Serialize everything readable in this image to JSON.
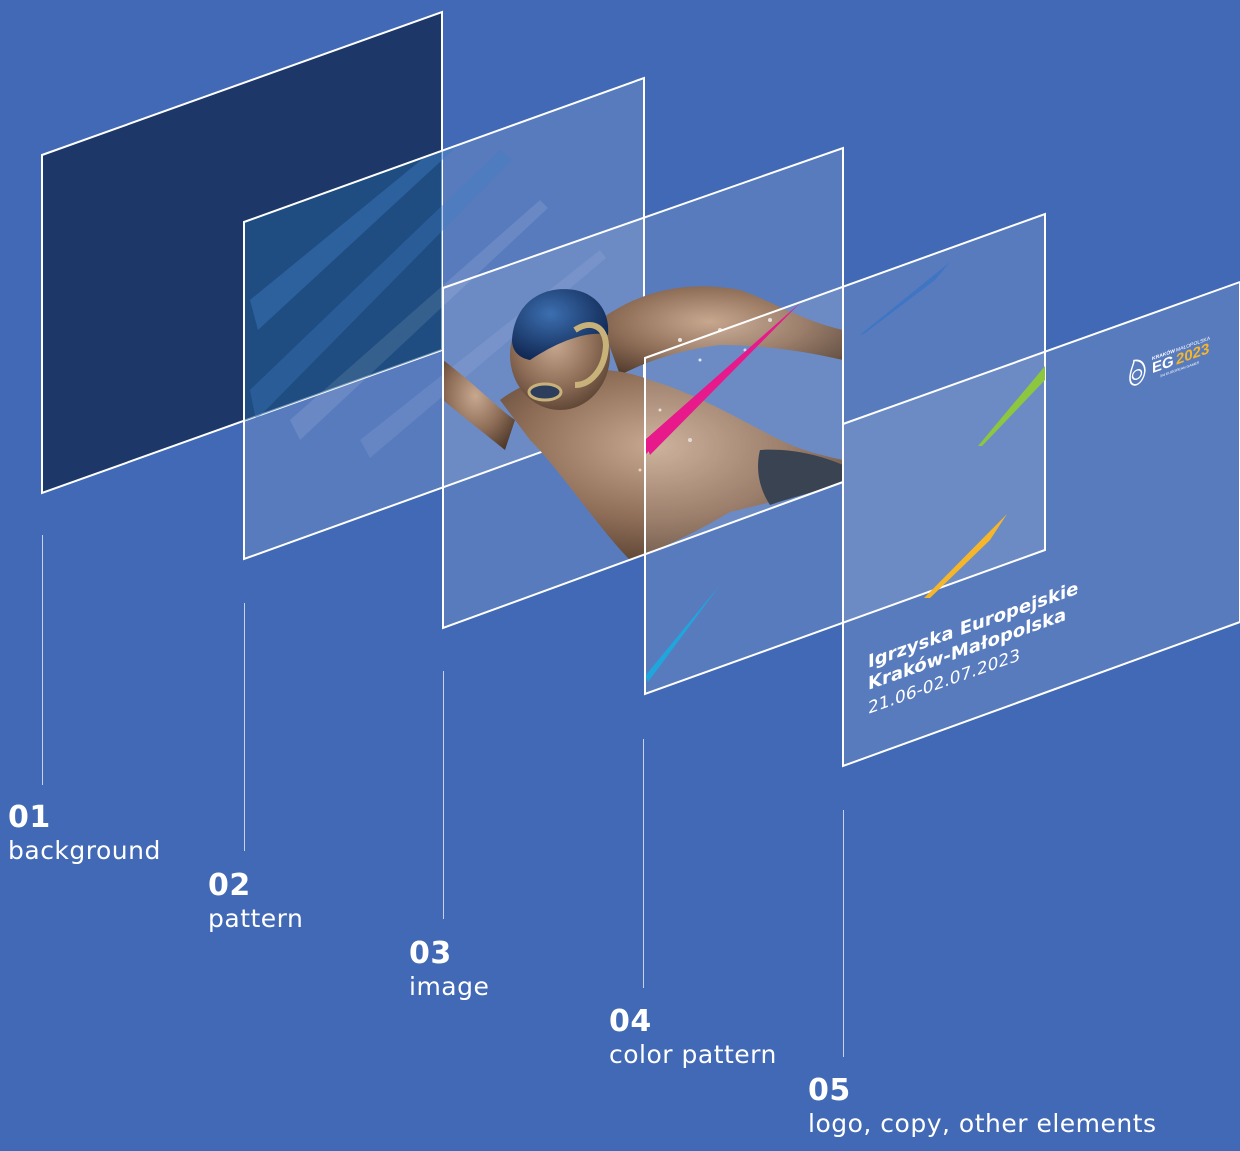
{
  "colors": {
    "background": "#4169b5",
    "panel_dark": "#1c3768",
    "pattern_blue": "#1a5d97",
    "accent_pink": "#e8198b",
    "accent_green": "#8dc63f",
    "accent_yellow": "#f6b62a",
    "accent_cyan": "#1fa6dc",
    "frame_white": "#ffffff"
  },
  "layers": [
    {
      "number": "01",
      "name": "background"
    },
    {
      "number": "02",
      "name": "pattern"
    },
    {
      "number": "03",
      "name": "image"
    },
    {
      "number": "04",
      "name": "color pattern"
    },
    {
      "number": "05",
      "name": "logo, copy, other elements"
    }
  ],
  "poster": {
    "title_line_1": "Igrzyska Europejskie",
    "title_line_2": "Kraków-Małopolska",
    "dates": "21.06-02.07.2023"
  },
  "logo": {
    "mark": "EG",
    "year": "2023",
    "city": "KRAKÓW",
    "region": "MAŁOPOLSKA",
    "tagline": "3rd EUROPEAN GAMES"
  }
}
